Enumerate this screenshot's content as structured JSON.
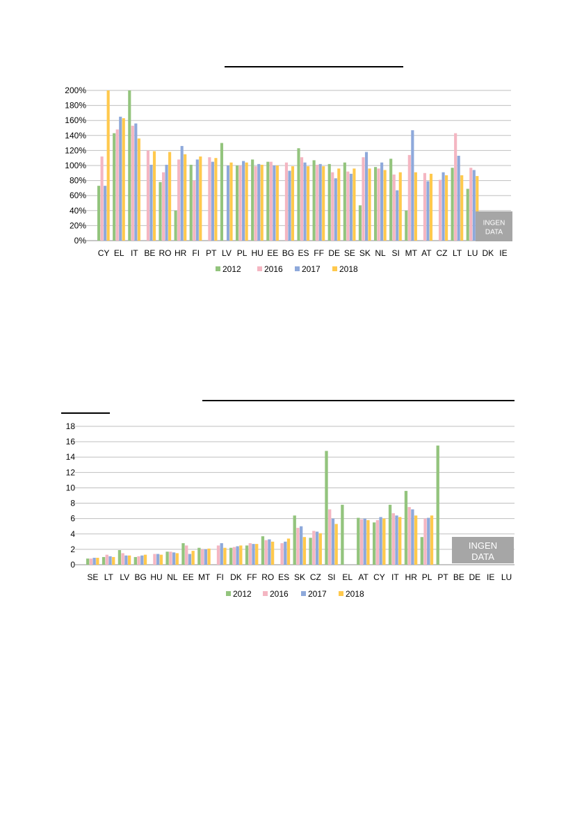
{
  "colors": {
    "2012": "#93c47d",
    "2016": "#f4b6c2",
    "2017": "#8ea9db",
    "2018": "#ffc94d",
    "nodata_box": "#a6a6a6",
    "grid": "#bfbfbf"
  },
  "chart_data": [
    {
      "type": "bar",
      "title": "",
      "ylim": [
        0,
        200
      ],
      "ystep": 20,
      "y_format": "percent",
      "grid": true,
      "legend_position": "bottom",
      "categories": [
        "CY",
        "EL",
        "IT",
        "BE",
        "RO",
        "HR",
        "FI",
        "PT",
        "LV",
        "PL",
        "HU",
        "EE",
        "BG",
        "ES",
        "FF",
        "DE",
        "SE",
        "SK",
        "NL",
        "SI",
        "MT",
        "AT",
        "CZ",
        "LT",
        "LU",
        "DK",
        "IE"
      ],
      "series": [
        {
          "name": "2012",
          "values": [
            73,
            143,
            200,
            null,
            78,
            40,
            101,
            null,
            130,
            100,
            108,
            105,
            null,
            123,
            107,
            102,
            104,
            47,
            98,
            109,
            40,
            null,
            null,
            97,
            69,
            null,
            null
          ]
        },
        {
          "name": "2016",
          "values": [
            112,
            148,
            153,
            120,
            91,
            108,
            80,
            111,
            null,
            100,
            99,
            105,
            104,
            111,
            101,
            91,
            92,
            111,
            96,
            88,
            114,
            90,
            81,
            143,
            97,
            null,
            null
          ]
        },
        {
          "name": "2017",
          "values": [
            73,
            165,
            156,
            101,
            101,
            126,
            108,
            105,
            100,
            106,
            102,
            100,
            93,
            104,
            102,
            83,
            89,
            118,
            104,
            67,
            147,
            79,
            91,
            113,
            94,
            null,
            null
          ]
        },
        {
          "name": "2018",
          "values": [
            200,
            163,
            136,
            119,
            118,
            115,
            112,
            110,
            104,
            104,
            101,
            100,
            99,
            99,
            99,
            96,
            96,
            96,
            94,
            91,
            91,
            89,
            87,
            87,
            86,
            null,
            null
          ]
        }
      ],
      "nodata_label": [
        "INGEN",
        "DATA"
      ]
    },
    {
      "type": "bar",
      "title": "",
      "ylim": [
        0,
        18
      ],
      "ystep": 2,
      "y_format": "number",
      "grid": true,
      "legend_position": "bottom",
      "categories": [
        "SE",
        "LT",
        "LV",
        "BG",
        "HU",
        "NL",
        "EE",
        "MT",
        "FI",
        "DK",
        "FF",
        "RO",
        "ES",
        "SK",
        "CZ",
        "SI",
        "EL",
        "AT",
        "CY",
        "IT",
        "HR",
        "PL",
        "PT",
        "BE",
        "DE",
        "IE",
        "LU"
      ],
      "series": [
        {
          "name": "2012",
          "values": [
            0.8,
            1.0,
            1.9,
            1.0,
            null,
            1.7,
            2.8,
            2.2,
            null,
            2.2,
            2.5,
            3.7,
            null,
            6.4,
            3.5,
            14.8,
            7.8,
            6.1,
            5.5,
            7.8,
            9.6,
            3.6,
            15.5,
            null,
            null,
            null,
            null
          ]
        },
        {
          "name": "2016",
          "values": [
            0.8,
            1.3,
            1.5,
            1.1,
            1.4,
            1.7,
            2.5,
            2.0,
            2.5,
            2.3,
            2.8,
            3.2,
            2.8,
            4.8,
            4.4,
            7.2,
            null,
            5.9,
            5.8,
            6.7,
            7.5,
            6.0,
            null,
            null,
            null,
            null,
            null
          ]
        },
        {
          "name": "2017",
          "values": [
            0.9,
            1.1,
            1.2,
            1.2,
            1.4,
            1.6,
            1.4,
            2.0,
            2.8,
            2.4,
            2.7,
            3.3,
            3.0,
            5.0,
            4.3,
            6.0,
            null,
            6.0,
            6.2,
            6.4,
            7.2,
            6.1,
            null,
            null,
            null,
            null,
            null
          ]
        },
        {
          "name": "2018",
          "values": [
            0.9,
            1.0,
            1.2,
            1.3,
            1.3,
            1.5,
            1.8,
            2.1,
            2.2,
            2.5,
            2.7,
            3.0,
            3.4,
            3.6,
            4.1,
            5.3,
            null,
            5.8,
            6.0,
            6.2,
            6.4,
            6.4,
            null,
            null,
            null,
            null,
            null
          ]
        }
      ],
      "nodata_label": [
        "INGEN",
        "DATA"
      ]
    }
  ]
}
